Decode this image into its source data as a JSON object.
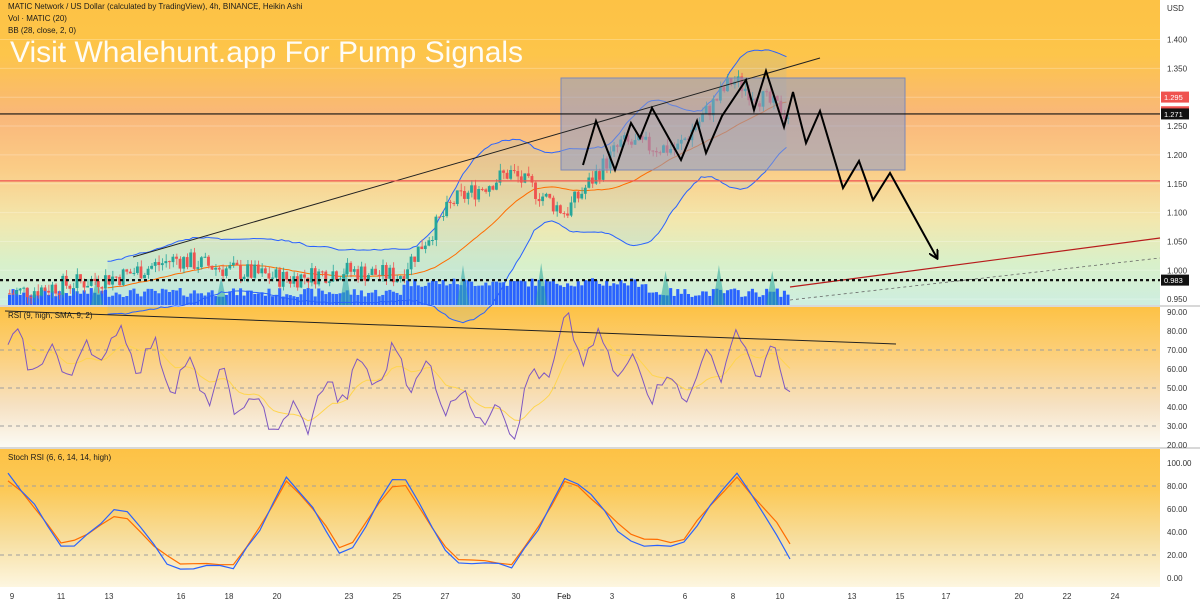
{
  "header": {
    "title": "MATIC Network / US Dollar (calculated by TradingView), 4h, BINANCE, Heikin Ashi",
    "vol_label": "Vol · MATIC (20)",
    "bb_label": "BB (28, close, 2, 0)",
    "watermark": "Visit Whalehunt.app For Pump Signals"
  },
  "colors": {
    "up": "#26a69a",
    "down": "#ef5350",
    "volume": "#2962ff",
    "bollinger": "#2962ff",
    "basis": "#ff6d00",
    "rsi": "#7e57c2",
    "stoch_k": "#2962ff",
    "stoch_d": "#ff6d00",
    "box": "#8e9cc8"
  },
  "chart_data": [
    {
      "type": "candlestick",
      "name": "price",
      "y_axis": {
        "currency": "USD",
        "ticks": [
          "1.400",
          "1.350",
          "1.300",
          "1.250",
          "1.200",
          "1.150",
          "1.100",
          "1.050",
          "1.000",
          "0.950"
        ],
        "range": [
          0.93,
          1.42
        ]
      },
      "x_axis": {
        "ticks": [
          "9",
          "11",
          "13",
          "16",
          "18",
          "20",
          "23",
          "25",
          "27",
          "30",
          "Feb",
          "3",
          "6",
          "8",
          "10",
          "13",
          "15",
          "17",
          "20",
          "22",
          "24"
        ]
      },
      "price_labels": [
        "1.295",
        "1.280",
        "1.271",
        "0.983"
      ],
      "horizontal_levels": [
        1.271,
        0.983,
        1.155
      ],
      "last_close": 1.271,
      "projection_label": "",
      "series": [
        {
          "name": "close",
          "x": [
            "9",
            "11",
            "13",
            "16",
            "18",
            "20",
            "23",
            "25",
            "27",
            "30",
            "Feb",
            "3",
            "6",
            "8",
            "10"
          ],
          "values": [
            0.96,
            0.975,
            0.99,
            1.02,
            1.0,
            0.985,
            1.0,
            0.99,
            1.12,
            1.17,
            1.1,
            1.22,
            1.21,
            1.33,
            1.27
          ]
        }
      ]
    },
    {
      "type": "line",
      "name": "rsi",
      "label": "RSI (9, high, SMA, 9, 2)",
      "y_axis": {
        "ticks": [
          "90.00",
          "80.00",
          "70.00",
          "60.00",
          "50.00",
          "40.00",
          "30.00",
          "20.00"
        ],
        "range": [
          20,
          90
        ]
      },
      "series": [
        {
          "name": "rsi",
          "values": [
            70,
            62,
            75,
            58,
            46,
            30,
            52,
            64,
            44,
            33,
            78,
            62,
            48,
            72,
            55
          ]
        }
      ]
    },
    {
      "type": "line",
      "name": "stoch_rsi",
      "label": "Stoch RSI (6, 6, 14, 14, high)",
      "y_axis": {
        "ticks": [
          "100.00",
          "80.00",
          "60.00",
          "40.00",
          "20.00",
          "0.00"
        ],
        "range": [
          0,
          100
        ]
      },
      "series": [
        {
          "name": "k",
          "values": [
            90,
            25,
            60,
            10,
            5,
            88,
            20,
            90,
            15,
            5,
            90,
            40,
            20,
            97,
            15
          ]
        },
        {
          "name": "d",
          "values": [
            85,
            30,
            55,
            15,
            8,
            85,
            25,
            85,
            20,
            8,
            85,
            45,
            25,
            92,
            30
          ]
        }
      ]
    }
  ]
}
